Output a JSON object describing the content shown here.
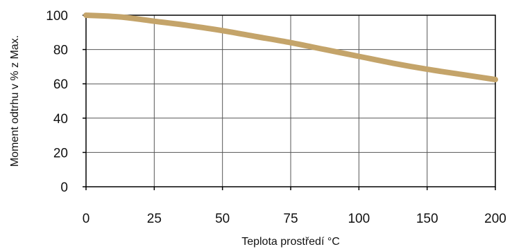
{
  "chart_data": {
    "type": "line",
    "title": "",
    "xlabel": "Teplota prostředí °C",
    "ylabel": "Moment odtrhu v % z Max.",
    "x_categories": [
      "0",
      "25",
      "50",
      "75",
      "100",
      "150",
      "200"
    ],
    "ylim": [
      0,
      100
    ],
    "y_ticks": [
      0,
      20,
      40,
      60,
      80,
      100
    ],
    "grid": true,
    "series": [
      {
        "name": "",
        "color": "#C4A46A",
        "points": [
          {
            "x": "0",
            "y": 100
          },
          {
            "x": "12.5",
            "y": 99
          },
          {
            "x": "25",
            "y": 96.5
          },
          {
            "x": "37.5",
            "y": 94
          },
          {
            "x": "50",
            "y": 91
          },
          {
            "x": "62.5",
            "y": 87.5
          },
          {
            "x": "75",
            "y": 84
          },
          {
            "x": "87.5",
            "y": 80
          },
          {
            "x": "100",
            "y": 76
          },
          {
            "x": "125",
            "y": 72
          },
          {
            "x": "150",
            "y": 68.5
          },
          {
            "x": "175",
            "y": 65.5
          },
          {
            "x": "200",
            "y": 62.5
          }
        ]
      }
    ]
  }
}
